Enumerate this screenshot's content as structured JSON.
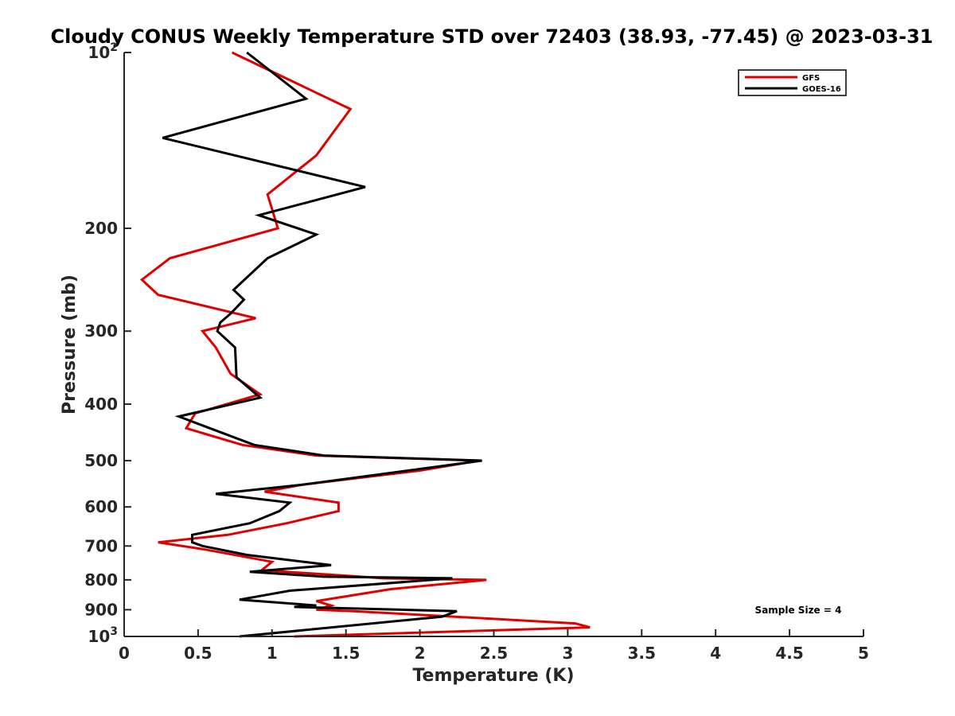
{
  "chart_data": {
    "type": "line",
    "title": "Cloudy CONUS Weekly Temperature STD over 72403 (38.93, -77.45) @ 2023-03-31",
    "xlabel": "Temperature (K)",
    "ylabel": "Pressure (mb)",
    "xlim": [
      0,
      5
    ],
    "ylim": [
      100,
      1000
    ],
    "y_scale": "log",
    "y_reversed": true,
    "x_ticks": [
      0,
      0.5,
      1,
      1.5,
      2,
      2.5,
      3,
      3.5,
      4,
      4.5,
      5
    ],
    "x_tick_labels": [
      "0",
      "0.5",
      "1",
      "1.5",
      "2",
      "2.5",
      "3",
      "3.5",
      "4",
      "4.5",
      "5"
    ],
    "y_ticks": [
      100,
      200,
      300,
      400,
      500,
      600,
      700,
      800,
      900,
      1000
    ],
    "y_tick_labels": [
      "10^2",
      "200",
      "300",
      "400",
      "500",
      "600",
      "700",
      "800",
      "900",
      "10^3"
    ],
    "grid": false,
    "legend_position": "top-right",
    "annotation": "Sample Size = 4",
    "series": [
      {
        "name": "GFS",
        "color": "#e00000",
        "points": [
          [
            0.73,
            100
          ],
          [
            1.53,
            125
          ],
          [
            1.3,
            150
          ],
          [
            0.97,
            175
          ],
          [
            1.04,
            200
          ],
          [
            0.31,
            225
          ],
          [
            0.12,
            245
          ],
          [
            0.23,
            260
          ],
          [
            0.89,
            285
          ],
          [
            0.53,
            300
          ],
          [
            0.62,
            320
          ],
          [
            0.72,
            355
          ],
          [
            0.92,
            385
          ],
          [
            0.48,
            415
          ],
          [
            0.42,
            440
          ],
          [
            0.8,
            470
          ],
          [
            1.3,
            490
          ],
          [
            2.4,
            500
          ],
          [
            2.0,
            520
          ],
          [
            1.2,
            550
          ],
          [
            0.95,
            565
          ],
          [
            1.45,
            590
          ],
          [
            1.45,
            610
          ],
          [
            1.1,
            640
          ],
          [
            0.7,
            670
          ],
          [
            0.23,
            690
          ],
          [
            0.55,
            710
          ],
          [
            1.0,
            745
          ],
          [
            0.93,
            770
          ],
          [
            1.6,
            790
          ],
          [
            1.75,
            795
          ],
          [
            2.45,
            800
          ],
          [
            1.8,
            830
          ],
          [
            1.3,
            870
          ],
          [
            1.4,
            885
          ],
          [
            1.3,
            900
          ],
          [
            1.55,
            905
          ],
          [
            3.05,
            950
          ],
          [
            3.15,
            965
          ],
          [
            1.15,
            1000
          ]
        ]
      },
      {
        "name": "GOES-16",
        "color": "#000000",
        "points": [
          [
            0.83,
            100
          ],
          [
            1.23,
            120
          ],
          [
            0.26,
            140
          ],
          [
            1.63,
            170
          ],
          [
            0.91,
            190
          ],
          [
            1.3,
            205
          ],
          [
            0.97,
            225
          ],
          [
            0.74,
            255
          ],
          [
            0.81,
            265
          ],
          [
            0.72,
            280
          ],
          [
            0.65,
            290
          ],
          [
            0.63,
            300
          ],
          [
            0.75,
            320
          ],
          [
            0.76,
            360
          ],
          [
            0.92,
            390
          ],
          [
            0.37,
            420
          ],
          [
            0.58,
            440
          ],
          [
            0.88,
            470
          ],
          [
            1.35,
            490
          ],
          [
            2.42,
            500
          ],
          [
            1.2,
            550
          ],
          [
            0.62,
            570
          ],
          [
            1.12,
            590
          ],
          [
            1.05,
            610
          ],
          [
            0.85,
            640
          ],
          [
            0.46,
            670
          ],
          [
            0.46,
            690
          ],
          [
            0.53,
            700
          ],
          [
            0.83,
            725
          ],
          [
            1.4,
            755
          ],
          [
            0.85,
            775
          ],
          [
            1.35,
            790
          ],
          [
            2.22,
            795
          ],
          [
            1.12,
            835
          ],
          [
            0.78,
            865
          ],
          [
            1.3,
            885
          ],
          [
            1.15,
            890
          ],
          [
            2.25,
            905
          ],
          [
            2.15,
            925
          ],
          [
            0.78,
            1000
          ]
        ]
      }
    ]
  }
}
